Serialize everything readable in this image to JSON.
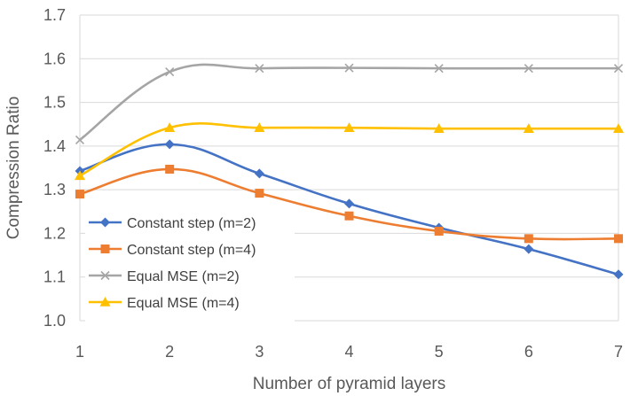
{
  "chart_data": {
    "type": "line",
    "title": "",
    "xlabel": "Number of pyramid layers",
    "ylabel": "Compression Ratio",
    "categories": [
      1,
      2,
      3,
      4,
      5,
      6,
      7
    ],
    "xlim": [
      1,
      7
    ],
    "ylim": [
      1.0,
      1.7
    ],
    "yticks": [
      "1.0",
      "1.1",
      "1.2",
      "1.3",
      "1.4",
      "1.5",
      "1.6",
      "1.7"
    ],
    "xticks": [
      "1",
      "2",
      "3",
      "4",
      "5",
      "6",
      "7"
    ],
    "grid": "horizontal",
    "legend_position": "lower-left",
    "smooth": true,
    "series": [
      {
        "name": "Constant step (m=2)",
        "color": "#4472C4",
        "marker": "diamond",
        "values": [
          1.343,
          1.404,
          1.337,
          1.268,
          1.213,
          1.164,
          1.106
        ]
      },
      {
        "name": "Constant step (m=4)",
        "color": "#ED7D31",
        "marker": "square",
        "values": [
          1.29,
          1.347,
          1.292,
          1.24,
          1.205,
          1.188,
          1.188
        ]
      },
      {
        "name": "Equal MSE (m=2)",
        "color": "#A5A5A5",
        "marker": "x",
        "values": [
          1.414,
          1.57,
          1.578,
          1.579,
          1.578,
          1.578,
          1.578
        ]
      },
      {
        "name": "Equal MSE (m=4)",
        "color": "#FFC000",
        "marker": "triangle",
        "values": [
          1.332,
          1.442,
          1.442,
          1.442,
          1.44,
          1.44,
          1.44
        ]
      }
    ]
  }
}
